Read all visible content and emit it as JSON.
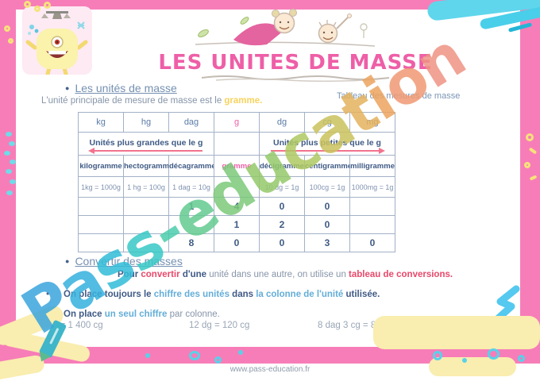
{
  "page": {
    "title": "LES UNITES DE MASSE",
    "footer_url": "www.pass-education.fr"
  },
  "sections": {
    "s1_heading": "Les unités de masse",
    "intro_segments": [
      {
        "t": "L'unité principale de mesure de masse est le ",
        "c": "gray",
        "b": false
      },
      {
        "t": "gramme.",
        "c": "yellow",
        "b": true
      }
    ],
    "table_caption": "Tableau des mesures de masse",
    "s2_heading": "Convertir des masses",
    "convert_segments": [
      {
        "t": "Pour ",
        "c": "navy",
        "b": true
      },
      {
        "t": "convertir ",
        "c": "red",
        "b": true
      },
      {
        "t": "d'une ",
        "c": "navy",
        "b": true
      },
      {
        "t": "unité dans une autre, on utilise un ",
        "c": "gray",
        "b": false
      },
      {
        "t": "tableau de conversions.",
        "c": "red",
        "b": true
      }
    ],
    "bullets": [
      {
        "segments": [
          {
            "t": "On place toujours le ",
            "c": "navy",
            "b": true
          },
          {
            "t": "chiffre des unités ",
            "c": "blue",
            "b": true
          },
          {
            "t": "dans ",
            "c": "navy",
            "b": true
          },
          {
            "t": "la colonne de l'unité ",
            "c": "blue",
            "b": true
          },
          {
            "t": "utilisée.",
            "c": "navy",
            "b": true
          }
        ]
      },
      {
        "segments": [
          {
            "t": "On place ",
            "c": "navy",
            "b": true
          },
          {
            "t": "un seul chiffre ",
            "c": "blue",
            "b": true
          },
          {
            "t": "par colonne.",
            "c": "gray",
            "b": false
          }
        ]
      }
    ],
    "examples": [
      "14 g = 1 400 cg",
      "12 dg = 120 cg",
      "8 dag 3 cg = 80 030 mg"
    ]
  },
  "table": {
    "header_units": [
      {
        "t": "kg"
      },
      {
        "t": "hg"
      },
      {
        "t": "dag"
      },
      {
        "t": "g",
        "accent": true
      },
      {
        "t": "dg"
      },
      {
        "t": "cg"
      },
      {
        "t": "mg"
      }
    ],
    "group_left": "Unités plus grandes que le g",
    "group_right": "Unités plus petites que le g",
    "unit_names": [
      {
        "t": "kilogramme"
      },
      {
        "t": "hectogramme"
      },
      {
        "t": "décagramme"
      },
      {
        "t": "gramme",
        "accent": true
      },
      {
        "t": "décigramme"
      },
      {
        "t": "centigramme"
      },
      {
        "t": "milligramme"
      }
    ],
    "equivalences": [
      "1kg = 1000g",
      "1 hg = 100g",
      "1 dag = 10g",
      "",
      "10 dg = 1g",
      "100cg = 1g",
      "1000mg = 1g"
    ],
    "number_rows": [
      [
        {
          "v": ""
        },
        {
          "v": ""
        },
        {
          "v": "1"
        },
        {
          "v": "4"
        },
        {
          "v": "0",
          "red": true
        },
        {
          "v": "0",
          "red": true
        },
        {
          "v": ""
        }
      ],
      [
        {
          "v": ""
        },
        {
          "v": ""
        },
        {
          "v": ""
        },
        {
          "v": "1"
        },
        {
          "v": "2"
        },
        {
          "v": "0",
          "red": true
        },
        {
          "v": ""
        }
      ],
      [
        {
          "v": ""
        },
        {
          "v": ""
        },
        {
          "v": "8"
        },
        {
          "v": "0",
          "red": true
        },
        {
          "v": "0",
          "red": true
        },
        {
          "v": "3"
        },
        {
          "v": "0",
          "red": true
        }
      ]
    ]
  },
  "watermark": {
    "letters": [
      {
        "ch": "P",
        "color": "#3aa5dd"
      },
      {
        "ch": "a",
        "color": "#36b1dd"
      },
      {
        "ch": "s",
        "color": "#31bdd8"
      },
      {
        "ch": "s",
        "color": "#38c8c6"
      },
      {
        "ch": "-",
        "color": "#4ccdac"
      },
      {
        "ch": "e",
        "color": "#63cb90"
      },
      {
        "ch": "d",
        "color": "#7cc97a"
      },
      {
        "ch": "u",
        "color": "#95ca6b"
      },
      {
        "ch": "c",
        "color": "#afc962"
      },
      {
        "ch": "a",
        "color": "#cbc35e"
      },
      {
        "ch": "t",
        "color": "#e5b25d"
      },
      {
        "ch": "i",
        "color": "#eda45f"
      },
      {
        "ch": "o",
        "color": "#f09a74"
      },
      {
        "ch": "n",
        "color": "#ef9384"
      }
    ]
  },
  "colors": {
    "frame_pink": "#f77db8",
    "title_pink": "#ee5fa7",
    "accent_red": "#e8486a",
    "accent_blue": "#64aed8",
    "accent_yellow": "#f7d35e",
    "heading_blue": "#7590b2",
    "navy": "#3f5a85",
    "table_border": "#a3b1c6",
    "body_gray": "#8795a9"
  }
}
